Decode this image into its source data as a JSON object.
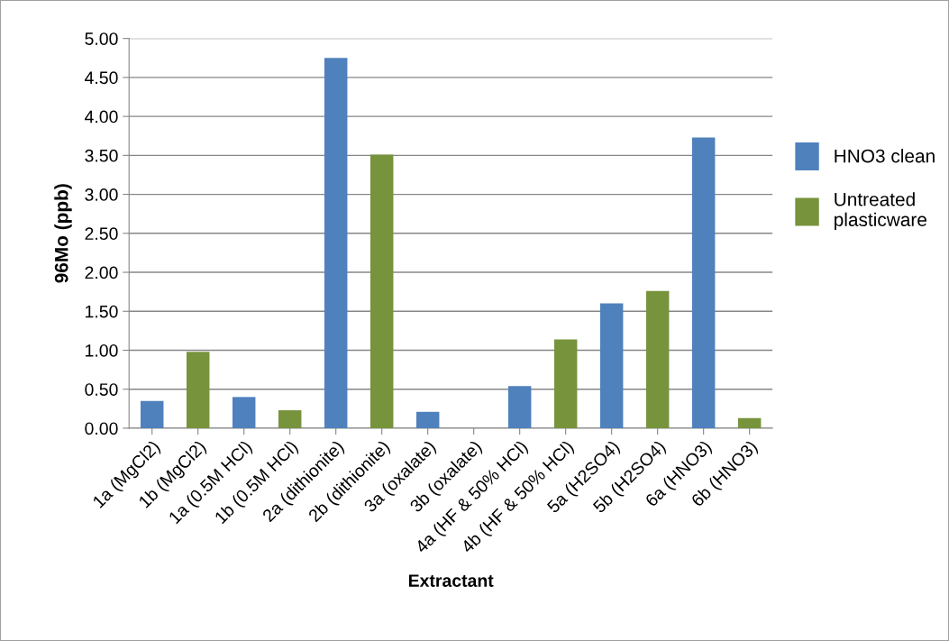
{
  "chart_data": {
    "type": "bar",
    "stacked": true,
    "xlabel": "Extractant",
    "ylabel": "96Mo (ppb)",
    "categories": [
      "1a (MgCl2)",
      "1b (MgCl2)",
      "1a (0.5M HCl)",
      "1b (0.5M HCl)",
      "2a (dithionite)",
      "2b (dithionite)",
      "3a (oxalate)",
      "3b (oxalate)",
      "4a (HF & 50% HCl)",
      "4b (HF & 50% HCl)",
      "5a (H2SO4)",
      "5b (H2SO4)",
      "6a (HNO3)",
      "6b (HNO3)"
    ],
    "series": [
      {
        "name": "HNO3 clean",
        "color": "#4f81bd",
        "values": [
          0.35,
          null,
          0.4,
          null,
          4.75,
          null,
          0.21,
          null,
          0.54,
          null,
          1.6,
          null,
          3.73,
          null
        ]
      },
      {
        "name": "Untreated plasticware",
        "color": "#77933c",
        "values": [
          null,
          0.98,
          null,
          0.23,
          null,
          3.51,
          null,
          null,
          null,
          1.14,
          null,
          1.76,
          null,
          0.13
        ]
      }
    ],
    "ylim": [
      0,
      5
    ],
    "yticks": [
      {
        "value": 0,
        "label": "0.00"
      },
      {
        "value": 0.5,
        "label": "0.50"
      },
      {
        "value": 1,
        "label": "1.00"
      },
      {
        "value": 1.5,
        "label": "1.50"
      },
      {
        "value": 2,
        "label": "2.00"
      },
      {
        "value": 2.5,
        "label": "2.50"
      },
      {
        "value": 3,
        "label": "3.00"
      },
      {
        "value": 3.5,
        "label": "3.50"
      },
      {
        "value": 4,
        "label": "4.00"
      },
      {
        "value": 4.5,
        "label": "4.50"
      },
      {
        "value": 5,
        "label": "5.00"
      }
    ],
    "grid": "y",
    "legend": "right"
  }
}
